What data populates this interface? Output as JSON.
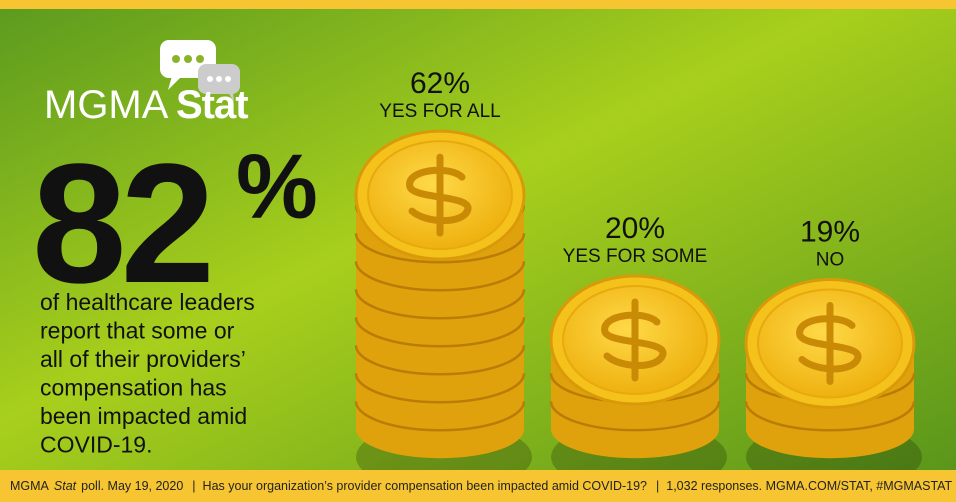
{
  "brand": {
    "name": "MGMA",
    "accent": "Stat"
  },
  "headline": {
    "number": "82",
    "unit": "%"
  },
  "description": [
    "of healthcare leaders",
    "report that some or",
    "all of their providers’",
    "compensation has",
    "been impacted amid",
    "COVID-19."
  ],
  "chart_data": {
    "type": "coin-stack",
    "categories": [
      "YES FOR ALL",
      "YES FOR SOME",
      "NO"
    ],
    "values": [
      62,
      20,
      19
    ],
    "value_labels": [
      "62%",
      "20%",
      "19%"
    ],
    "color": "#f5c21b"
  },
  "footer": {
    "parts": [
      "MGMA",
      "Stat",
      "poll. May 19, 2020",
      "|",
      "Has your organization’s provider compensation been impacted amid COVID-19?",
      "|",
      "1,032 responses. MGMA.COM/STAT, #MGMASTAT"
    ]
  }
}
